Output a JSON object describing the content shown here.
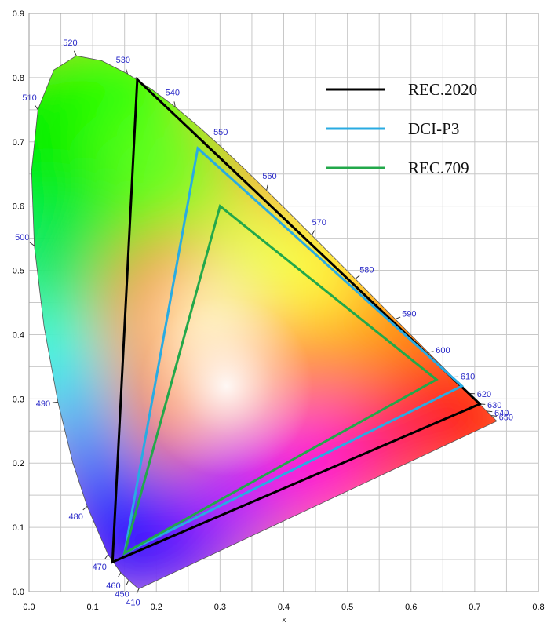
{
  "chart_data": {
    "type": "line",
    "title": "",
    "xlabel": "x",
    "ylabel": "",
    "xlim": [
      0.0,
      0.8
    ],
    "ylim": [
      0.0,
      0.9
    ],
    "grid": true,
    "legend_position": "top-right",
    "x_ticks": [
      "0.0",
      "0.1",
      "0.2",
      "0.3",
      "0.4",
      "0.5",
      "0.6",
      "0.7",
      "0.8"
    ],
    "y_ticks": [
      "0.0",
      "0.1",
      "0.2",
      "0.3",
      "0.4",
      "0.5",
      "0.6",
      "0.7",
      "0.8",
      "0.9"
    ],
    "locus": [
      [
        0.1741,
        0.005
      ],
      [
        0.1738,
        0.0049
      ],
      [
        0.1736,
        0.0049
      ],
      [
        0.1721,
        0.0048
      ],
      [
        0.1689,
        0.0069
      ],
      [
        0.1644,
        0.0109
      ],
      [
        0.1566,
        0.0177
      ],
      [
        0.144,
        0.0297
      ],
      [
        0.1241,
        0.0578
      ],
      [
        0.0913,
        0.1327
      ],
      [
        0.0687,
        0.2007
      ],
      [
        0.0454,
        0.295
      ],
      [
        0.0235,
        0.4127
      ],
      [
        0.0082,
        0.5384
      ],
      [
        0.0039,
        0.6548
      ],
      [
        0.0139,
        0.7502
      ],
      [
        0.0389,
        0.812
      ],
      [
        0.0743,
        0.8338
      ],
      [
        0.1142,
        0.8262
      ],
      [
        0.1547,
        0.8059
      ],
      [
        0.1929,
        0.7816
      ],
      [
        0.2296,
        0.7543
      ],
      [
        0.2658,
        0.7243
      ],
      [
        0.3016,
        0.6923
      ],
      [
        0.3373,
        0.6589
      ],
      [
        0.3731,
        0.6245
      ],
      [
        0.4087,
        0.5896
      ],
      [
        0.4441,
        0.5547
      ],
      [
        0.4788,
        0.5202
      ],
      [
        0.5125,
        0.4866
      ],
      [
        0.5448,
        0.4544
      ],
      [
        0.5752,
        0.4242
      ],
      [
        0.6029,
        0.3965
      ],
      [
        0.627,
        0.3725
      ],
      [
        0.6482,
        0.3514
      ],
      [
        0.6658,
        0.334
      ],
      [
        0.6801,
        0.3197
      ],
      [
        0.6915,
        0.3083
      ],
      [
        0.7006,
        0.2993
      ],
      [
        0.7079,
        0.292
      ],
      [
        0.714,
        0.2859
      ],
      [
        0.719,
        0.2809
      ],
      [
        0.723,
        0.277
      ],
      [
        0.726,
        0.274
      ],
      [
        0.7283,
        0.2717
      ],
      [
        0.73,
        0.27
      ],
      [
        0.7311,
        0.2689
      ],
      [
        0.732,
        0.268
      ],
      [
        0.7327,
        0.2673
      ],
      [
        0.7334,
        0.2666
      ],
      [
        0.734,
        0.266
      ],
      [
        0.7344,
        0.2656
      ],
      [
        0.7346,
        0.2654
      ],
      [
        0.7347,
        0.2653
      ]
    ],
    "wavelength_marks": [
      {
        "label": "410",
        "x": 0.1726,
        "y": 0.0048
      },
      {
        "label": "450",
        "x": 0.1566,
        "y": 0.0177
      },
      {
        "label": "460",
        "x": 0.144,
        "y": 0.0297
      },
      {
        "label": "470",
        "x": 0.1241,
        "y": 0.0578
      },
      {
        "label": "480",
        "x": 0.0913,
        "y": 0.1327
      },
      {
        "label": "490",
        "x": 0.0454,
        "y": 0.295
      },
      {
        "label": "500",
        "x": 0.0082,
        "y": 0.5384
      },
      {
        "label": "510",
        "x": 0.0139,
        "y": 0.7502
      },
      {
        "label": "520",
        "x": 0.0743,
        "y": 0.8338
      },
      {
        "label": "530",
        "x": 0.1547,
        "y": 0.8059
      },
      {
        "label": "540",
        "x": 0.2296,
        "y": 0.7543
      },
      {
        "label": "550",
        "x": 0.3016,
        "y": 0.6923
      },
      {
        "label": "560",
        "x": 0.3731,
        "y": 0.6245
      },
      {
        "label": "570",
        "x": 0.4441,
        "y": 0.5547
      },
      {
        "label": "580",
        "x": 0.5125,
        "y": 0.4866
      },
      {
        "label": "590",
        "x": 0.5752,
        "y": 0.4242
      },
      {
        "label": "600",
        "x": 0.627,
        "y": 0.3725
      },
      {
        "label": "610",
        "x": 0.6658,
        "y": 0.334
      },
      {
        "label": "620",
        "x": 0.6915,
        "y": 0.3083
      },
      {
        "label": "630",
        "x": 0.7079,
        "y": 0.292
      },
      {
        "label": "640",
        "x": 0.719,
        "y": 0.2809
      },
      {
        "label": "650",
        "x": 0.726,
        "y": 0.274
      }
    ],
    "series": [
      {
        "name": "REC.2020",
        "color": "#000000",
        "points": [
          [
            0.17,
            0.797
          ],
          [
            0.708,
            0.292
          ],
          [
            0.131,
            0.046
          ]
        ]
      },
      {
        "name": "DCI-P3",
        "color": "#29abe2",
        "points": [
          [
            0.265,
            0.69
          ],
          [
            0.68,
            0.32
          ],
          [
            0.15,
            0.06
          ]
        ]
      },
      {
        "name": "REC.709",
        "color": "#22a84a",
        "points": [
          [
            0.3,
            0.6
          ],
          [
            0.64,
            0.33
          ],
          [
            0.15,
            0.06
          ]
        ]
      }
    ]
  }
}
